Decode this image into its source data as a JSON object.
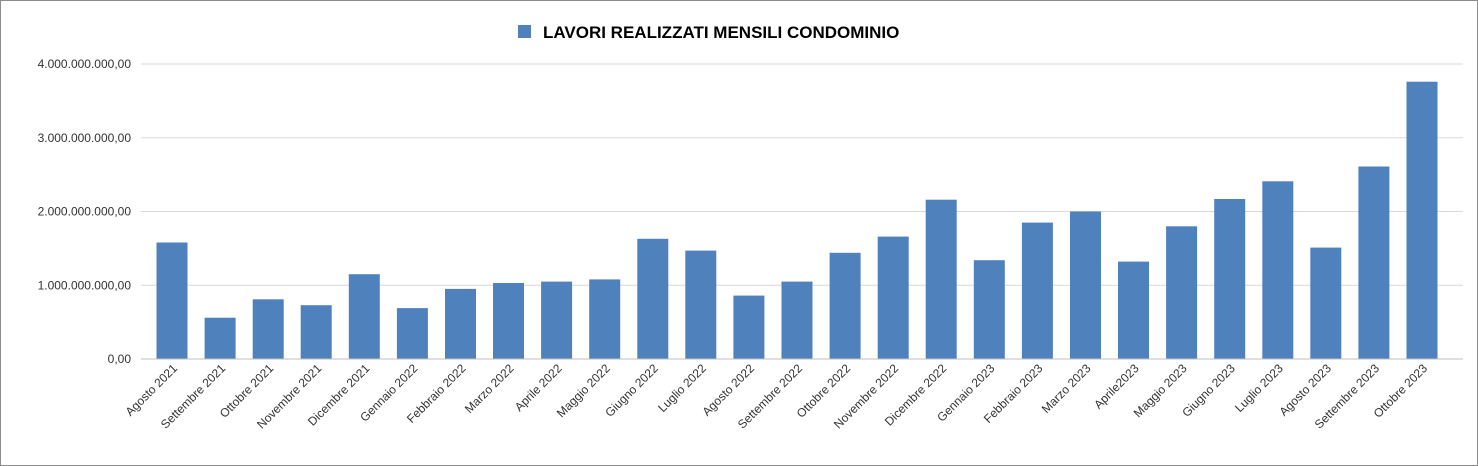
{
  "chart_data": {
    "type": "bar",
    "title": "LAVORI REALIZZATI MENSILI CONDOMINIO",
    "legend": {
      "entries": [
        "LAVORI REALIZZATI MENSILI CONDOMINIO"
      ],
      "placement": "top-center"
    },
    "xlabel": "",
    "ylabel": "",
    "ylim": [
      0,
      4000000000
    ],
    "yticks": [
      0,
      1000000000,
      2000000000,
      3000000000,
      4000000000
    ],
    "ytick_labels": [
      "0,00",
      "1.000.000.000,00",
      "2.000.000.000,00",
      "3.000.000.000,00",
      "4.000.000.000,00"
    ],
    "grid": true,
    "bar_color": "#4f81bd",
    "categories": [
      "Agosto 2021",
      "Settembre 2021",
      "Ottobre 2021",
      "Novembre 2021",
      "Dicembre 2021",
      "Gennaio 2022",
      "Febbraio 2022",
      "Marzo 2022",
      "Aprile 2022",
      "Maggio 2022",
      "Giugno 2022",
      "Luglio 2022",
      "Agosto 2022",
      "Settembre 2022",
      "Ottobre 2022",
      "Novembre 2022",
      "Dicembre 2022",
      "Gennaio 2023",
      "Febbraio 2023",
      "Marzo 2023",
      "Aprile2023",
      "Maggio 2023",
      "Giugno 2023",
      "Luglio 2023",
      "Agosto 2023",
      "Settembre 2023",
      "Ottobre 2023"
    ],
    "series": [
      {
        "name": "LAVORI REALIZZATI MENSILI CONDOMINIO",
        "values": [
          1580000000,
          560000000,
          810000000,
          730000000,
          1150000000,
          690000000,
          950000000,
          1030000000,
          1050000000,
          1080000000,
          1630000000,
          1470000000,
          860000000,
          1050000000,
          1440000000,
          1660000000,
          2160000000,
          1340000000,
          1850000000,
          2000000000,
          1320000000,
          1800000000,
          2170000000,
          2410000000,
          1510000000,
          2610000000,
          3760000000
        ]
      }
    ]
  }
}
